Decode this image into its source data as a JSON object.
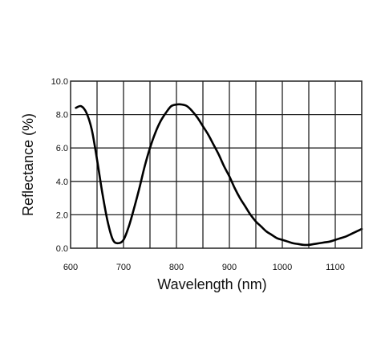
{
  "chart_data": {
    "type": "line",
    "title": "",
    "xlabel": "Wavelength (nm)",
    "ylabel": "Reflectance (%)",
    "xlim": [
      600,
      1150
    ],
    "ylim": [
      0,
      10
    ],
    "x_ticks": [
      600,
      700,
      800,
      900,
      1000,
      1100
    ],
    "x_tick_labels": [
      "600",
      "700",
      "800",
      "900",
      "1000",
      "1100"
    ],
    "y_ticks": [
      0,
      2,
      4,
      6,
      8,
      10
    ],
    "y_tick_labels": [
      "0.0",
      "2.0",
      "4.0",
      "6.0",
      "8.0",
      "10.0"
    ],
    "grid": true,
    "legend": "none",
    "series": [
      {
        "color": "#000000",
        "x": [
          610,
          620,
          630,
          640,
          650,
          660,
          670,
          680,
          690,
          700,
          710,
          720,
          730,
          740,
          750,
          760,
          770,
          780,
          790,
          800,
          810,
          820,
          830,
          840,
          850,
          860,
          870,
          880,
          890,
          900,
          910,
          920,
          930,
          940,
          950,
          960,
          970,
          980,
          990,
          1000,
          1010,
          1020,
          1030,
          1040,
          1050,
          1060,
          1070,
          1080,
          1090,
          1100,
          1110,
          1120,
          1130,
          1140,
          1150
        ],
        "y": [
          8.4,
          8.5,
          8.1,
          7.1,
          5.3,
          3.3,
          1.6,
          0.5,
          0.3,
          0.5,
          1.3,
          2.4,
          3.6,
          4.9,
          6.0,
          6.9,
          7.6,
          8.1,
          8.5,
          8.6,
          8.6,
          8.5,
          8.2,
          7.8,
          7.3,
          6.8,
          6.2,
          5.6,
          4.9,
          4.3,
          3.6,
          3.0,
          2.5,
          2.0,
          1.6,
          1.3,
          1.0,
          0.8,
          0.6,
          0.5,
          0.4,
          0.3,
          0.25,
          0.2,
          0.2,
          0.25,
          0.3,
          0.35,
          0.4,
          0.5,
          0.6,
          0.7,
          0.85,
          1.0,
          1.15
        ]
      }
    ]
  }
}
